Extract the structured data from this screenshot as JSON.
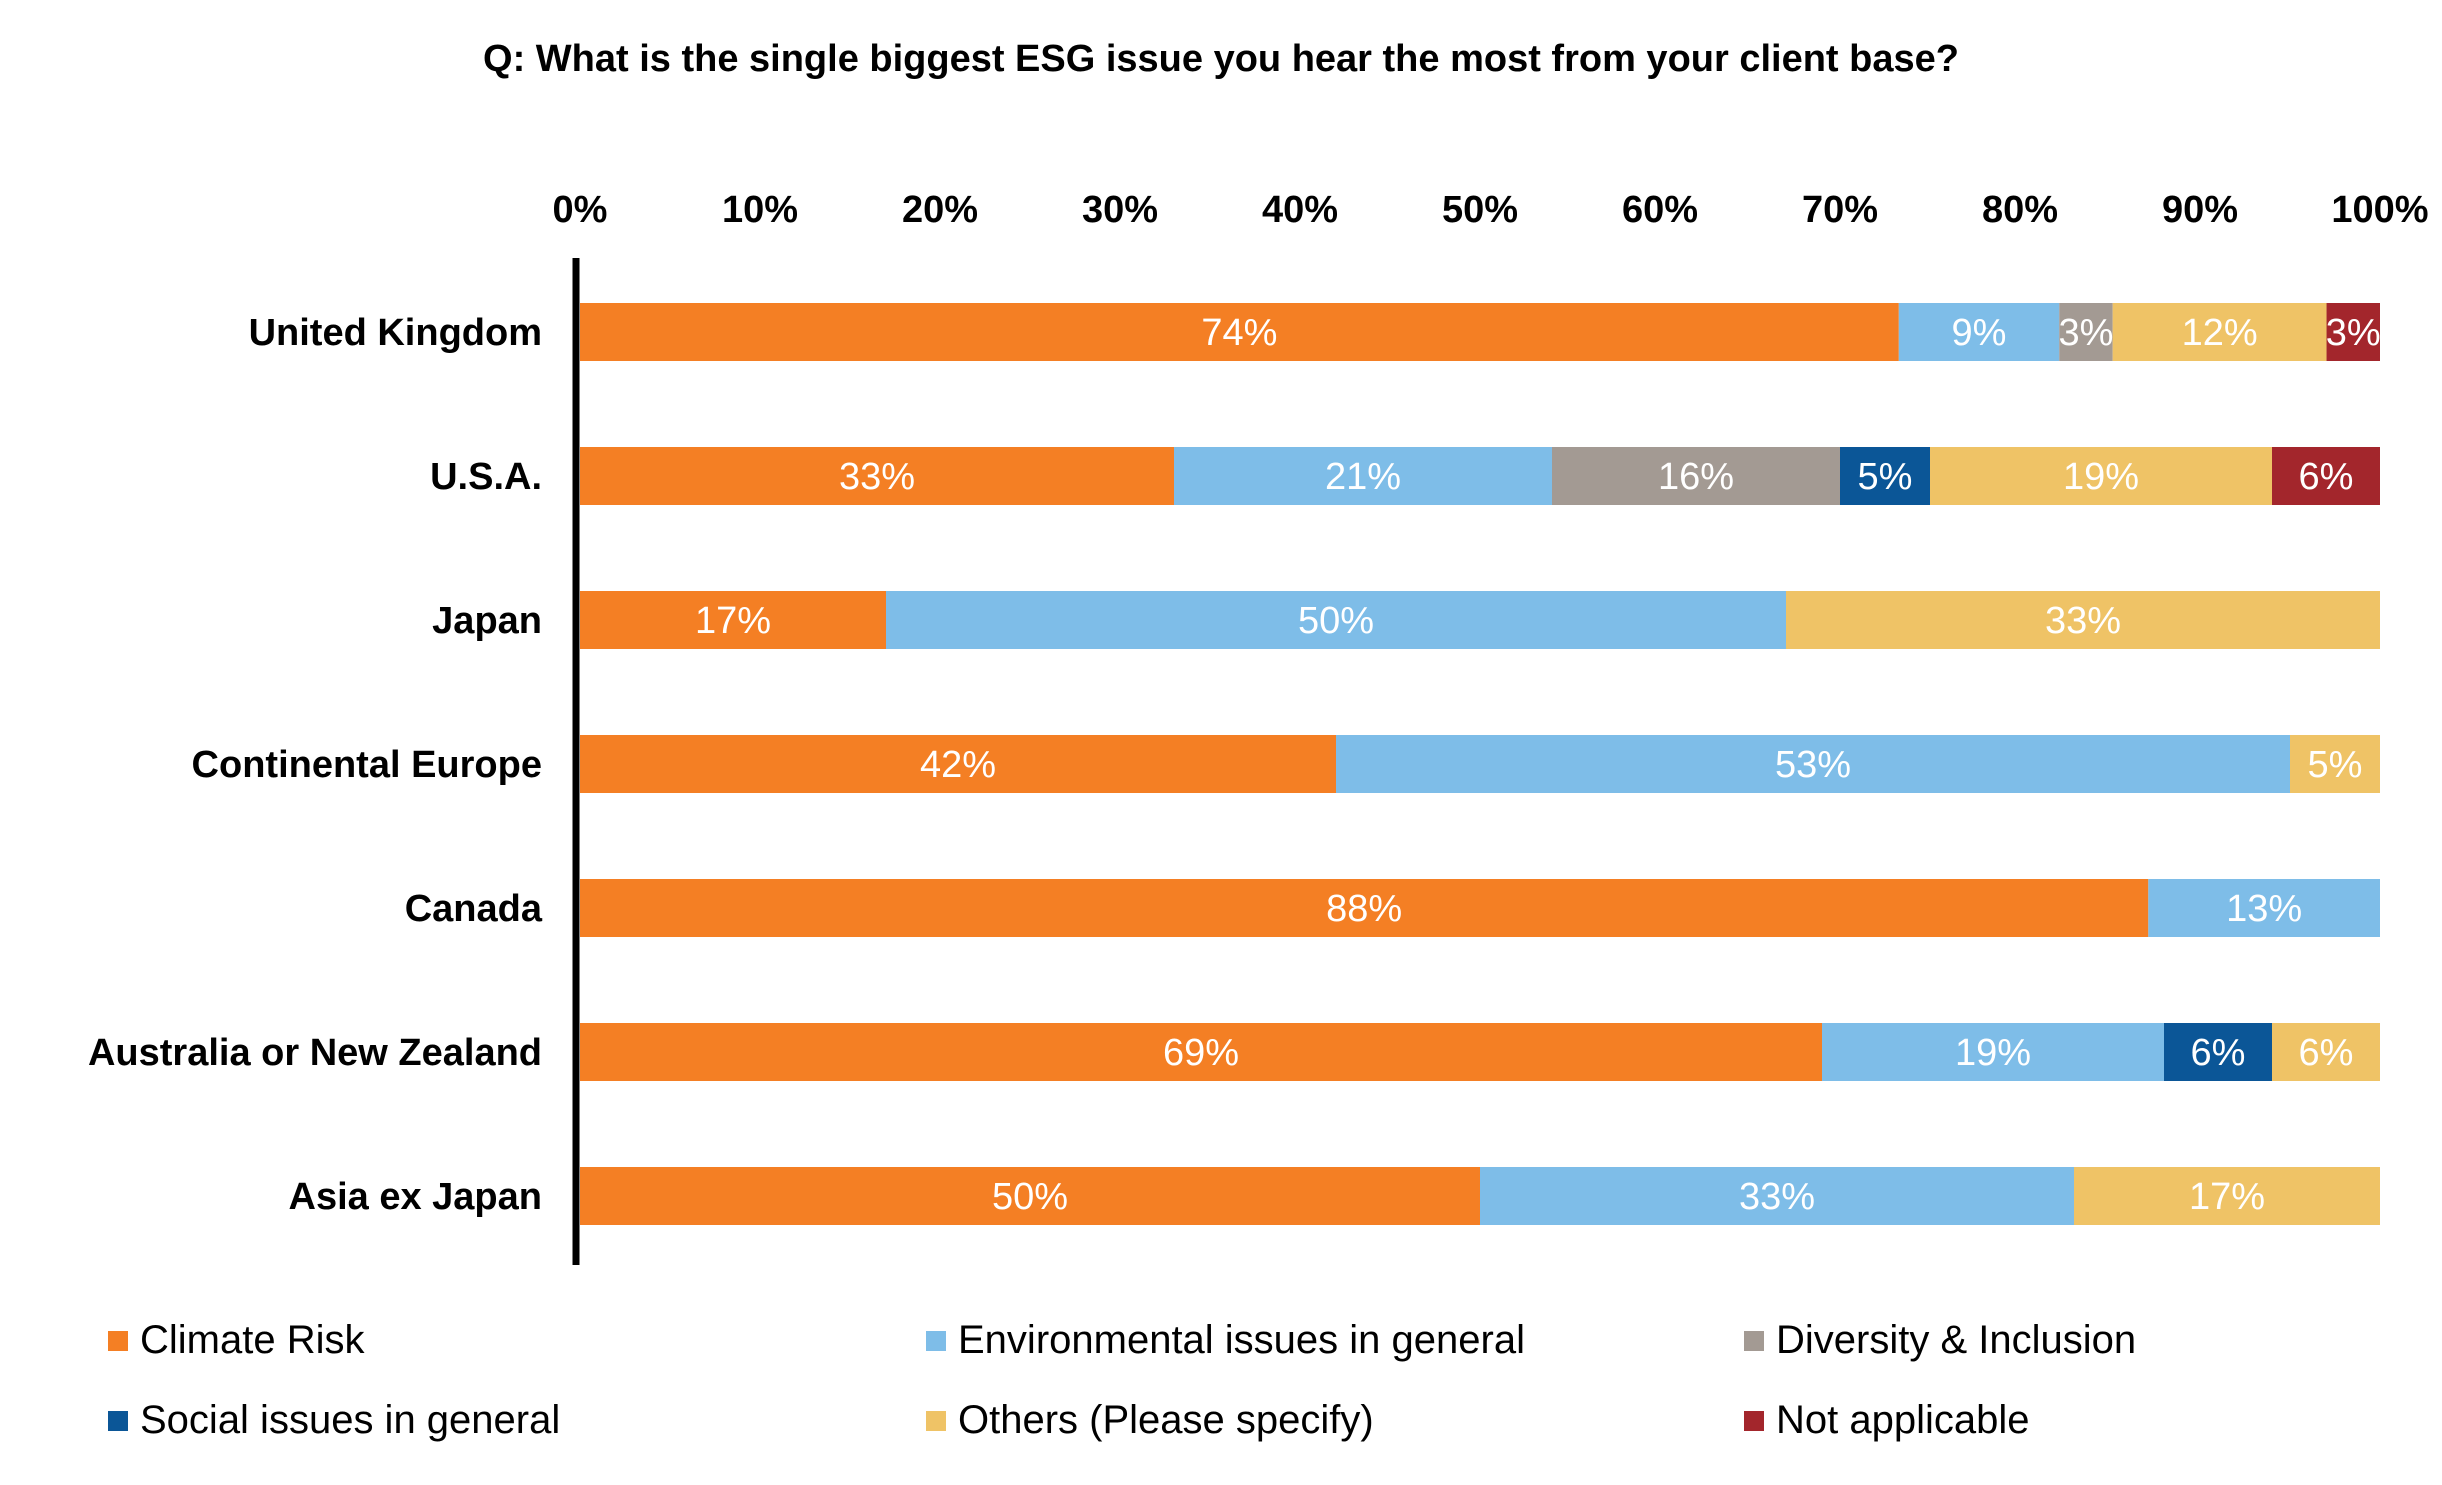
{
  "title": "Q: What is the single biggest ESG issue you hear the most from your client base?",
  "colors": {
    "Climate Risk": "#F47F24",
    "Environmental issues in general": "#7EBDE8",
    "Diversity & Inclusion": "#A39A93",
    "Social issues in general": "#0B5697",
    "Others (Please specify)": "#EFC366",
    "Not applicable": "#A3262C"
  },
  "chart_data": {
    "type": "bar",
    "orientation": "horizontal",
    "stacked": "100%",
    "title": "Q: What is the single biggest ESG issue you hear the most from your client base?",
    "xaxis_position": "top",
    "xlim": [
      0,
      100
    ],
    "ticks": [
      "0%",
      "10%",
      "20%",
      "30%",
      "40%",
      "50%",
      "60%",
      "70%",
      "80%",
      "90%",
      "100%"
    ],
    "grid": false,
    "legend_position": "bottom",
    "categories": [
      "United Kingdom",
      "U.S.A.",
      "Japan",
      "Continental Europe",
      "Canada",
      "Australia or New Zealand",
      "Asia ex Japan"
    ],
    "series": [
      {
        "name": "Climate Risk",
        "values": [
          74,
          33,
          17,
          42,
          88,
          69,
          50
        ],
        "labels": [
          "74%",
          "33%",
          "17%",
          "42%",
          "88%",
          "69%",
          "50%"
        ]
      },
      {
        "name": "Environmental issues in general",
        "values": [
          9,
          21,
          50,
          53,
          13,
          19,
          33
        ],
        "labels": [
          "9%",
          "21%",
          "50%",
          "53%",
          "13%",
          "19%",
          "33%"
        ]
      },
      {
        "name": "Diversity & Inclusion",
        "values": [
          3,
          16,
          0,
          0,
          0,
          0,
          0
        ],
        "labels": [
          "3%",
          "16%",
          "",
          "",
          "",
          "",
          ""
        ]
      },
      {
        "name": "Social issues in general",
        "values": [
          0,
          5,
          0,
          0,
          0,
          6,
          0
        ],
        "labels": [
          "",
          "5%",
          "",
          "",
          "",
          "6%",
          ""
        ]
      },
      {
        "name": "Others (Please specify)",
        "values": [
          12,
          19,
          33,
          5,
          0,
          6,
          17
        ],
        "labels": [
          "12%",
          "19%",
          "33%",
          "5%",
          "",
          "6%",
          "17%"
        ]
      },
      {
        "name": "Not applicable",
        "values": [
          3,
          6,
          0,
          0,
          0,
          0,
          0
        ],
        "labels": [
          "3%",
          "6%",
          "",
          "",
          "",
          "",
          ""
        ]
      }
    ]
  }
}
